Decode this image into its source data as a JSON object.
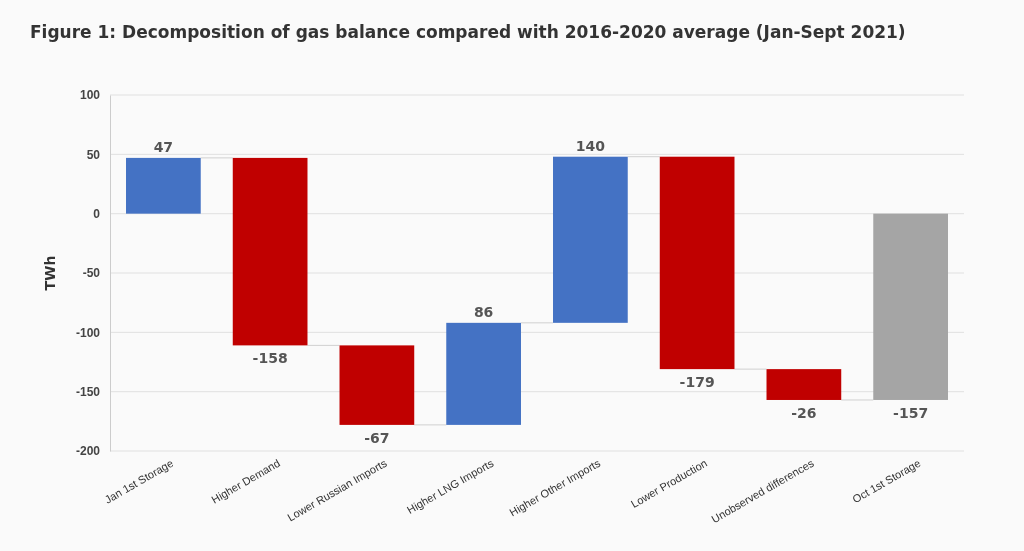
{
  "chart_data": {
    "type": "bar",
    "title": "Figure 1: Decomposition of gas balance compared with 2016-2020 average (Jan-Sept 2021)",
    "ylabel": "TWh",
    "categories": [
      "Jan 1st Storage",
      "Higher Demand",
      "Lower Russian Imports",
      "Higher LNG Imports",
      "Higher Other Imports",
      "Lower Production",
      "Unobserved differences",
      "Oct 1st Storage"
    ],
    "values": [
      47,
      -158,
      -67,
      86,
      140,
      -179,
      -26,
      -157
    ],
    "base": [
      0,
      47,
      -111,
      -178,
      -92,
      48,
      -131,
      0
    ],
    "colors": [
      "#4472c4",
      "#c00000",
      "#c00000",
      "#4472c4",
      "#4472c4",
      "#c00000",
      "#c00000",
      "#a5a5a5"
    ],
    "ylim": [
      -200,
      100
    ],
    "yticks": [
      -200,
      -150,
      -100,
      -50,
      0,
      50,
      100
    ],
    "grid": "y",
    "data_labels": true
  }
}
